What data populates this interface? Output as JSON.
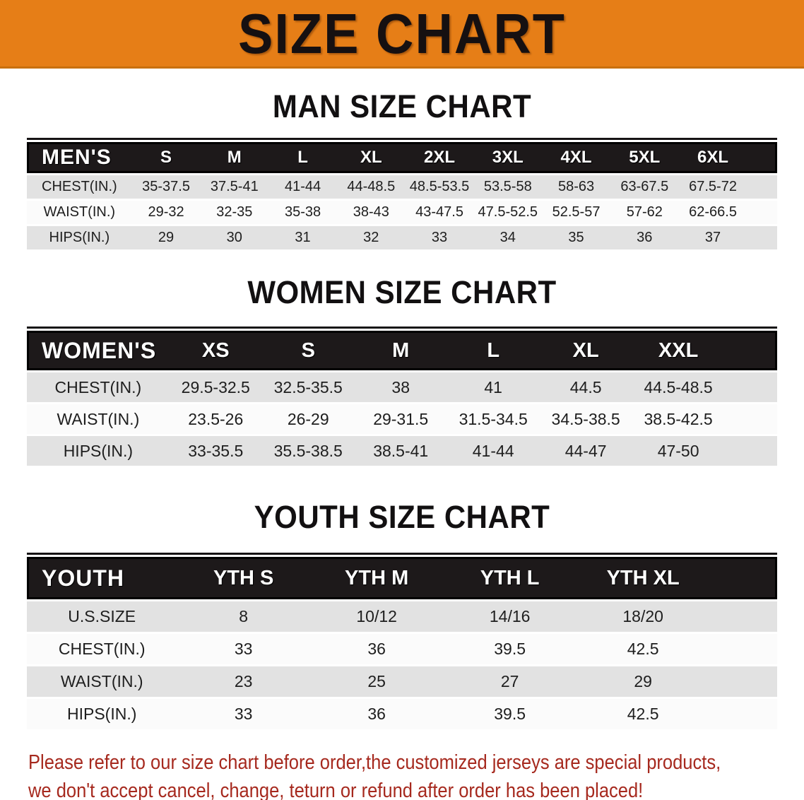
{
  "banner": {
    "title": "SIZE CHART"
  },
  "sections": [
    {
      "id": "men",
      "heading": "MAN SIZE CHART",
      "table": {
        "corner_label": "MEN'S",
        "columns": [
          "S",
          "M",
          "L",
          "XL",
          "2XL",
          "3XL",
          "4XL",
          "5XL",
          "6XL"
        ],
        "rows": [
          {
            "label": "CHEST(IN.)",
            "values": [
              "35-37.5",
              "37.5-41",
              "41-44",
              "44-48.5",
              "48.5-53.5",
              "53.5-58",
              "58-63",
              "63-67.5",
              "67.5-72"
            ]
          },
          {
            "label": "WAIST(IN.)",
            "values": [
              "29-32",
              "32-35",
              "35-38",
              "38-43",
              "43-47.5",
              "47.5-52.5",
              "52.5-57",
              "57-62",
              "62-66.5"
            ]
          },
          {
            "label": "HIPS(IN.)",
            "values": [
              "29",
              "30",
              "31",
              "32",
              "33",
              "34",
              "35",
              "36",
              "37"
            ]
          }
        ]
      }
    },
    {
      "id": "women",
      "heading": "WOMEN SIZE CHART",
      "table": {
        "corner_label": "WOMEN'S",
        "columns": [
          "XS",
          "S",
          "M",
          "L",
          "XL",
          "XXL"
        ],
        "rows": [
          {
            "label": "CHEST(IN.)",
            "values": [
              "29.5-32.5",
              "32.5-35.5",
              "38",
              "41",
              "44.5",
              "44.5-48.5"
            ]
          },
          {
            "label": "WAIST(IN.)",
            "values": [
              "23.5-26",
              "26-29",
              "29-31.5",
              "31.5-34.5",
              "34.5-38.5",
              "38.5-42.5"
            ]
          },
          {
            "label": "HIPS(IN.)",
            "values": [
              "33-35.5",
              "35.5-38.5",
              "38.5-41",
              "41-44",
              "44-47",
              "47-50"
            ]
          }
        ]
      }
    },
    {
      "id": "youth",
      "heading": "YOUTH SIZE CHART",
      "table": {
        "corner_label": "YOUTH",
        "columns": [
          "YTH S",
          "YTH M",
          "YTH L",
          "YTH XL"
        ],
        "rows": [
          {
            "label": "U.S.SIZE",
            "values": [
              "8",
              "10/12",
              "14/16",
              "18/20"
            ]
          },
          {
            "label": "CHEST(IN.)",
            "values": [
              "33",
              "36",
              "39.5",
              "42.5"
            ]
          },
          {
            "label": "WAIST(IN.)",
            "values": [
              "23",
              "25",
              "27",
              "29"
            ]
          },
          {
            "label": "HIPS(IN.)",
            "values": [
              "33",
              "36",
              "39.5",
              "42.5"
            ]
          }
        ]
      }
    }
  ],
  "footer": {
    "lines": [
      "Please refer to our size chart before order,the customized jerseys are special products,",
      "we don't accept cancel, change, teturn or refund after order has been placed!"
    ]
  },
  "colors": {
    "banner_bg": "#E67E17",
    "banner_edge": "#C9700F",
    "header_bar_bg": "#1D191A",
    "row_alt_bg": "#E2E2E2",
    "row_bg": "#FBFBFB",
    "note_text": "#A6291E",
    "heading_text": "#121011"
  }
}
